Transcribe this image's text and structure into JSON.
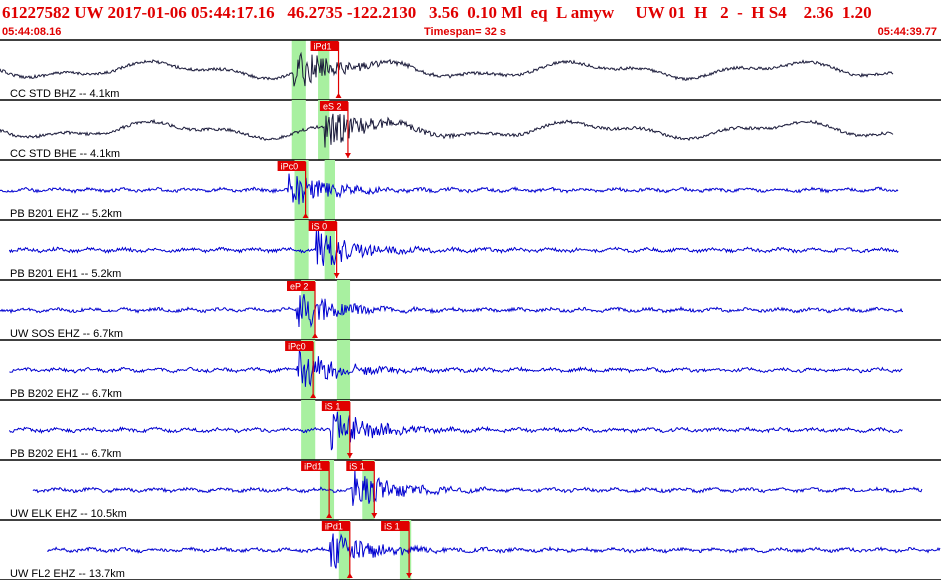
{
  "header": {
    "title": "61227582 UW 2017-01-06 05:44:17.16   46.2735 -122.2130   3.56  0.10 Ml  eq  L amyw     UW 01  H   2  -  H S4    2.36  1.20",
    "start_time": "05:44:08.16",
    "timespan": "Timespan=  32 s",
    "end_time": "05:44:39.77"
  },
  "colors": {
    "title": "#e00000",
    "trace_black": "#1a1a3a",
    "trace_blue": "#0000d0",
    "pick_fill": "#e00000",
    "window_green": "#a8f0a0"
  },
  "traces": [
    {
      "label": "CC STD BHZ -- 4.1km",
      "color": "black",
      "start": 0.0,
      "end": 0.95,
      "picks": [
        {
          "text": "iPd1",
          "at": 0.33,
          "up": true
        }
      ],
      "windows": [
        [
          0.31,
          0.325
        ],
        [
          0.338,
          0.35
        ]
      ],
      "arrival": 0.332
    },
    {
      "label": "CC STD BHE -- 4.1km",
      "color": "black",
      "start": 0.0,
      "end": 0.95,
      "picks": [
        {
          "text": "eS 2",
          "at": 0.34,
          "up": false
        }
      ],
      "windows": [
        [
          0.31,
          0.325
        ],
        [
          0.338,
          0.35
        ]
      ],
      "arrival": 0.365
    },
    {
      "label": "PB B201 EHZ -- 5.2km",
      "color": "blue",
      "start": 0.0,
      "end": 0.955,
      "picks": [
        {
          "text": "iPc0",
          "at": 0.295,
          "up": true
        }
      ],
      "windows": [
        [
          0.313,
          0.328
        ],
        [
          0.345,
          0.356
        ]
      ],
      "arrival": 0.325
    },
    {
      "label": "PB B201 EH1 -- 5.2km",
      "color": "blue",
      "start": 0.01,
      "end": 0.955,
      "picks": [
        {
          "text": "iS 0",
          "at": 0.328,
          "up": false
        }
      ],
      "windows": [
        [
          0.313,
          0.328
        ],
        [
          0.345,
          0.356
        ]
      ],
      "arrival": 0.356
    },
    {
      "label": "UW SOS EHZ -- 6.7km",
      "color": "blue",
      "start": 0.0,
      "end": 0.96,
      "picks": [
        {
          "text": "eP 2",
          "at": 0.305,
          "up": true
        }
      ],
      "windows": [
        [
          0.32,
          0.335
        ],
        [
          0.358,
          0.372
        ]
      ],
      "arrival": 0.335
    },
    {
      "label": "PB B202 EHZ -- 6.7km",
      "color": "blue",
      "start": 0.01,
      "end": 0.96,
      "picks": [
        {
          "text": "iPc0",
          "at": 0.303,
          "up": true
        }
      ],
      "windows": [
        [
          0.32,
          0.335
        ],
        [
          0.358,
          0.372
        ]
      ],
      "arrival": 0.335
    },
    {
      "label": "PB B202 EH1 -- 6.7km",
      "color": "blue",
      "start": 0.01,
      "end": 0.96,
      "picks": [
        {
          "text": "iS 1",
          "at": 0.342,
          "up": false
        }
      ],
      "windows": [
        [
          0.32,
          0.335
        ],
        [
          0.358,
          0.372
        ]
      ],
      "arrival": 0.372
    },
    {
      "label": "UW ELK EHZ -- 10.5km",
      "color": "blue",
      "start": 0.035,
      "end": 0.98,
      "picks": [
        {
          "text": "iPd1",
          "at": 0.32,
          "up": true
        },
        {
          "text": "iS 1",
          "at": 0.368,
          "up": false
        }
      ],
      "windows": [
        [
          0.34,
          0.355
        ],
        [
          0.385,
          0.398
        ]
      ],
      "arrival": 0.395
    },
    {
      "label": "UW FL2 EHZ -- 13.7km",
      "color": "blue",
      "start": 0.05,
      "end": 1.0,
      "picks": [
        {
          "text": "iPd1",
          "at": 0.342,
          "up": true
        },
        {
          "text": "iS 1",
          "at": 0.405,
          "up": false
        }
      ],
      "windows": [
        [
          0.36,
          0.372
        ],
        [
          0.425,
          0.437
        ]
      ],
      "arrival": 0.37
    }
  ]
}
